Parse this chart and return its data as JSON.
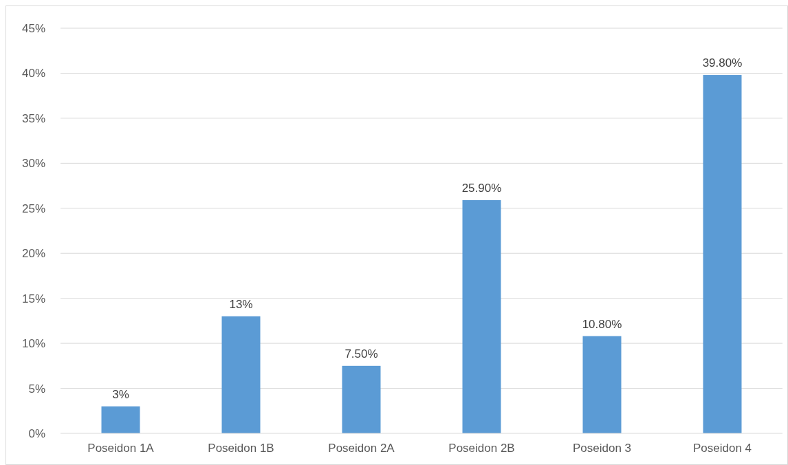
{
  "chart_data": {
    "type": "bar",
    "categories": [
      "Poseidon 1A",
      "Poseidon 1B",
      "Poseidon 2A",
      "Poseidon 2B",
      "Poseidon 3",
      "Poseidon 4"
    ],
    "values": [
      3,
      13,
      7.5,
      25.9,
      10.8,
      39.8
    ],
    "color": "#5b9bd5",
    "value_labels": [
      "3%",
      "13%",
      "7.50%",
      "25.90%",
      "10.80%",
      "39.80%"
    ],
    "ylim": [
      0,
      45
    ],
    "yticks": [
      {
        "value": 0,
        "label": "0%"
      },
      {
        "value": 5,
        "label": "5%"
      },
      {
        "value": 10,
        "label": "10%"
      },
      {
        "value": 15,
        "label": "15%"
      },
      {
        "value": 20,
        "label": "20%"
      },
      {
        "value": 25,
        "label": "25%"
      },
      {
        "value": 30,
        "label": "30%"
      },
      {
        "value": 35,
        "label": "35%"
      },
      {
        "value": 40,
        "label": "40%"
      },
      {
        "value": 45,
        "label": "45%"
      }
    ],
    "grid": "y"
  }
}
